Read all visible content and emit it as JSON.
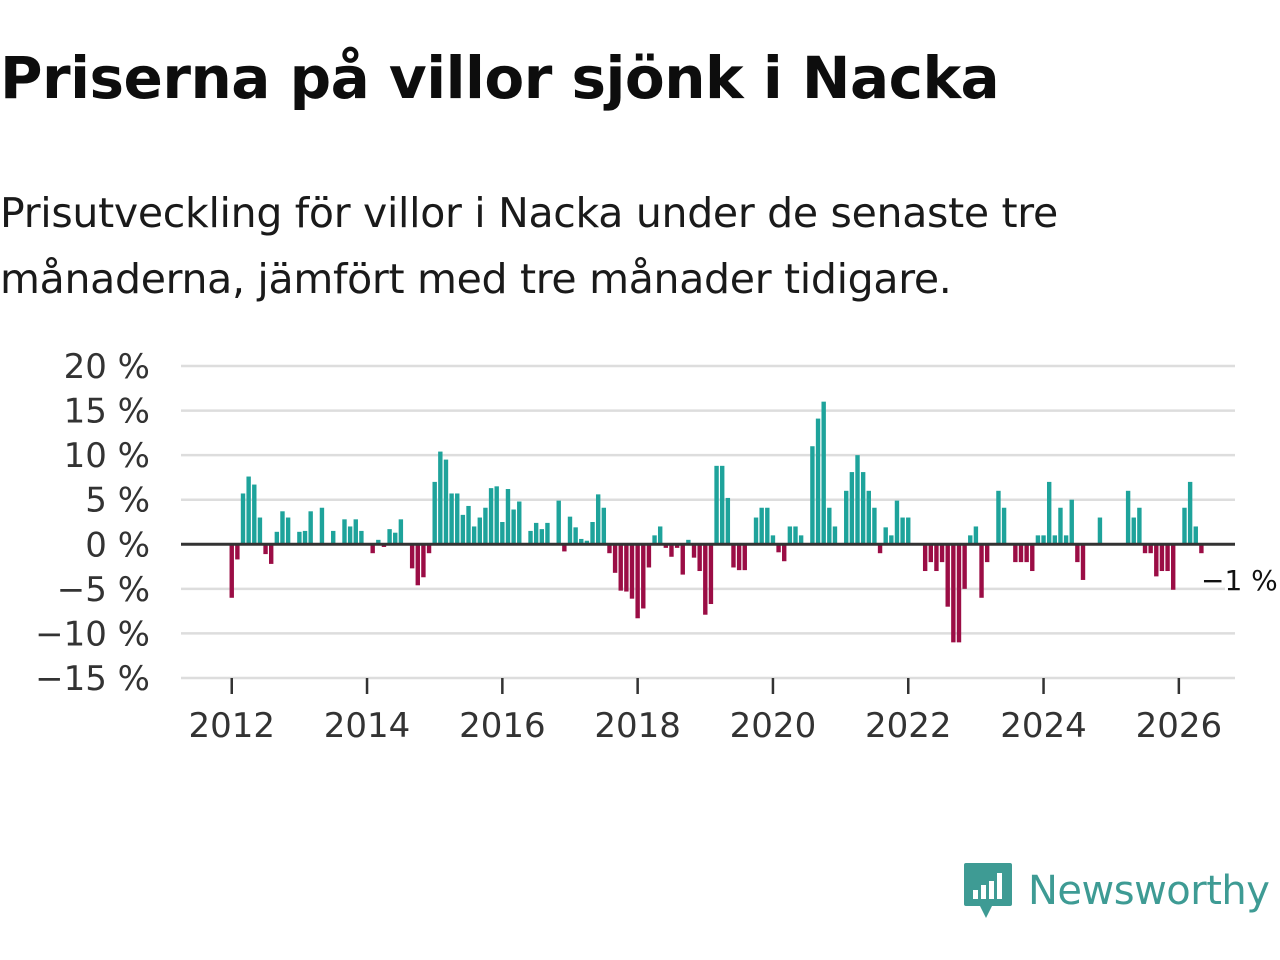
{
  "title": "Priserna på villor sjönk i Nacka",
  "subtitle": "Prisutveckling för villor i Nacka under de senaste tre månaderna, jämfört med tre månader tidigare.",
  "brand": {
    "name": "Newsworthy",
    "color": "#3e9b94",
    "icon": "newsworthy-logo-icon"
  },
  "colors": {
    "positive": "#1ea39b",
    "negative": "#9b0d45",
    "grid": "#dddddd",
    "zero": "#333333"
  },
  "chart_data": {
    "type": "bar",
    "title": "Priserna på villor sjönk i Nacka",
    "xlabel": "",
    "ylabel": "",
    "ylim": [
      -15,
      20
    ],
    "xlim": [
      2011.25,
      2026.83
    ],
    "yticks": [
      20,
      15,
      10,
      5,
      0,
      -5,
      -10,
      -15
    ],
    "ytick_labels": [
      "20 %",
      "15 %",
      "10 %",
      "5 %",
      "0 %",
      "−5 %",
      "−10 %",
      "−15 %"
    ],
    "xticks": [
      2012,
      2014,
      2016,
      2018,
      2020,
      2022,
      2024,
      2026
    ],
    "xtick_labels": [
      "2012",
      "2014",
      "2016",
      "2018",
      "2020",
      "2022",
      "2024",
      "2026"
    ],
    "start": {
      "year": 2012,
      "month": 1
    },
    "values": [
      -6,
      -1.7,
      5.7,
      7.6,
      6.7,
      3,
      -1.1,
      -2.2,
      1.4,
      3.7,
      3,
      0,
      1.4,
      1.5,
      3.7,
      0,
      4.1,
      0,
      1.5,
      0,
      2.8,
      2,
      2.8,
      1.5,
      0,
      -1,
      0.5,
      -0.3,
      1.7,
      1.3,
      2.8,
      0,
      -2.7,
      -4.6,
      -3.7,
      -1,
      7,
      10.4,
      9.5,
      5.7,
      5.7,
      3.3,
      4.3,
      2,
      3,
      4.1,
      6.3,
      6.5,
      2.5,
      6.2,
      3.9,
      4.8,
      0,
      1.5,
      2.4,
      1.7,
      2.4,
      0,
      4.9,
      -0.8,
      3.1,
      1.9,
      0.6,
      0.4,
      2.5,
      5.6,
      4.1,
      -1,
      -3.2,
      -5.2,
      -5.3,
      -6.1,
      -8.3,
      -7.2,
      -2.6,
      1,
      2,
      -0.4,
      -1.4,
      -0.4,
      -3.4,
      0.5,
      -1.5,
      -3,
      -7.9,
      -6.7,
      8.8,
      8.8,
      5.2,
      -2.6,
      -2.9,
      -2.9,
      0,
      3,
      4.1,
      4.1,
      1,
      -0.9,
      -1.9,
      2,
      2,
      1,
      0,
      11,
      14.1,
      16,
      4.1,
      2,
      0,
      6,
      8.1,
      10,
      8.1,
      6,
      4.1,
      -1,
      1.9,
      1,
      4.9,
      3,
      3,
      0,
      0,
      -3,
      -2,
      -3,
      -2,
      -7,
      -11,
      -11,
      -5,
      1,
      2,
      -6,
      -2,
      0,
      6,
      4.1,
      0,
      -2,
      -2,
      -2,
      -3,
      1,
      1,
      7,
      1,
      4.1,
      1,
      5,
      -2,
      -4,
      0,
      0,
      3,
      0,
      0,
      0,
      0,
      6,
      3,
      4.1,
      -1,
      -1,
      -3.6,
      -3,
      -3,
      -5.1,
      0,
      4.1,
      7,
      2,
      -1
    ],
    "annotation": {
      "label": "−1 %",
      "value": -1
    }
  }
}
